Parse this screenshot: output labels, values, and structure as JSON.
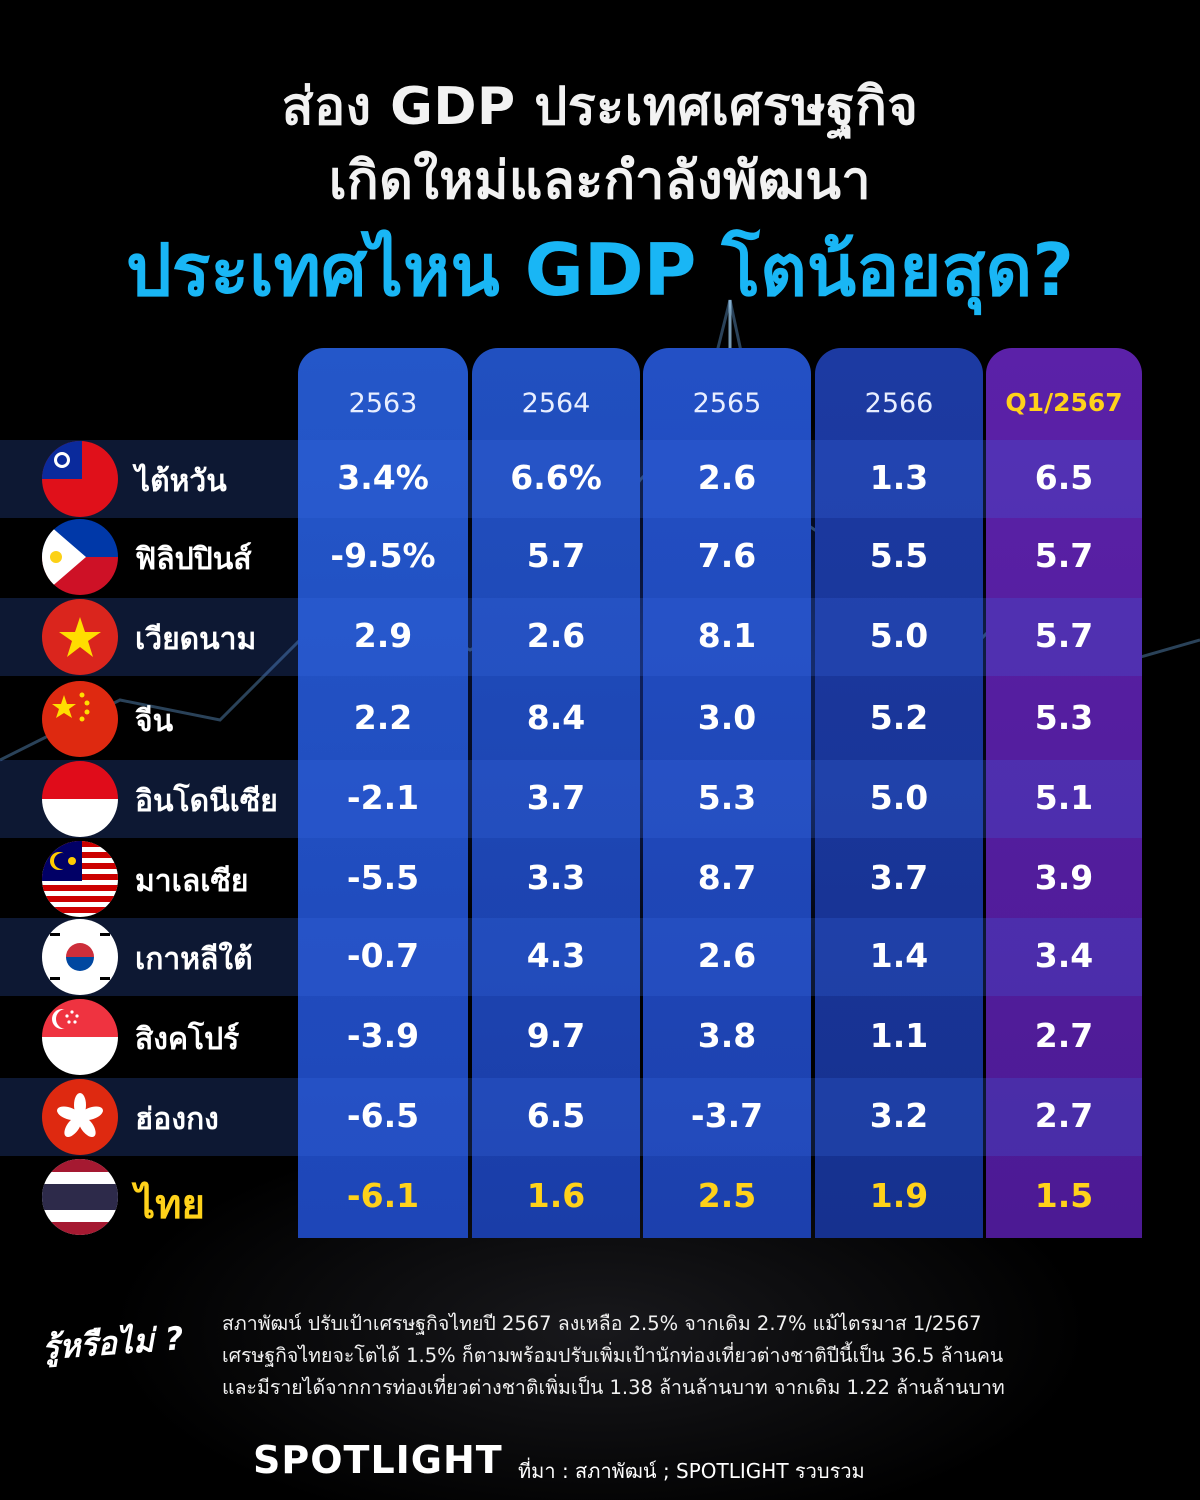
{
  "title": {
    "line1": "ส่อง GDP ประเทศเศรษฐกิจ",
    "line2": "เกิดใหม่และกำลังพัฒนา",
    "line3": "ประเทศไหน GDP โตน้อยสุด?"
  },
  "colors": {
    "accent": "#19b6f5",
    "highlight": "#ffd21a",
    "column_blue": "#2457c9",
    "column_purple": "#5b21a8"
  },
  "chart_data": {
    "type": "table",
    "columns": [
      "2563",
      "2564",
      "2565",
      "2566",
      "Q1/2567"
    ],
    "rows": [
      {
        "country": "ไต้หวัน",
        "flag_icon": "taiwan-flag-icon",
        "values": [
          "3.4%",
          "6.6%",
          "2.6",
          "1.3",
          "6.5"
        ]
      },
      {
        "country": "ฟิลิปปินส์",
        "flag_icon": "philippines-flag-icon",
        "values": [
          "-9.5%",
          "5.7",
          "7.6",
          "5.5",
          "5.7"
        ]
      },
      {
        "country": "เวียดนาม",
        "flag_icon": "vietnam-flag-icon",
        "values": [
          "2.9",
          "2.6",
          "8.1",
          "5.0",
          "5.7"
        ]
      },
      {
        "country": "จีน",
        "flag_icon": "china-flag-icon",
        "values": [
          "2.2",
          "8.4",
          "3.0",
          "5.2",
          "5.3"
        ]
      },
      {
        "country": "อินโดนีเซีย",
        "flag_icon": "indonesia-flag-icon",
        "values": [
          "-2.1",
          "3.7",
          "5.3",
          "5.0",
          "5.1"
        ]
      },
      {
        "country": "มาเลเซีย",
        "flag_icon": "malaysia-flag-icon",
        "values": [
          "-5.5",
          "3.3",
          "8.7",
          "3.7",
          "3.9"
        ]
      },
      {
        "country": "เกาหลีใต้",
        "flag_icon": "korea-flag-icon",
        "values": [
          "-0.7",
          "4.3",
          "2.6",
          "1.4",
          "3.4"
        ]
      },
      {
        "country": "สิงคโปร์",
        "flag_icon": "singapore-flag-icon",
        "values": [
          "-3.9",
          "9.7",
          "3.8",
          "1.1",
          "2.7"
        ]
      },
      {
        "country": "ฮ่องกง",
        "flag_icon": "hongkong-flag-icon",
        "values": [
          "-6.5",
          "6.5",
          "-3.7",
          "3.2",
          "2.7"
        ]
      },
      {
        "country": "ไทย",
        "flag_icon": "thailand-flag-icon",
        "values": [
          "-6.1",
          "1.6",
          "2.5",
          "1.9",
          "1.5"
        ],
        "highlight": true
      }
    ]
  },
  "did_you_know": {
    "label": "รู้หรือไม่ ?",
    "lines": [
      "สภาพัฒน์ ปรับเป้าเศรษฐกิจไทยปี 2567 ลงเหลือ 2.5% จากเดิม 2.7% แม้ไตรมาส 1/2567",
      "เศรษฐกิจไทยจะโตได้ 1.5% ก็ตามพร้อมปรับเพิ่มเป้านักท่องเที่ยวต่างชาติปีนี้เป็น 36.5 ล้านคน",
      "และมีรายได้จากการท่องเที่ยวต่างชาติเพิ่มเป็น 1.38 ล้านล้านบาท จากเดิม 1.22 ล้านล้านบาท"
    ]
  },
  "footer": {
    "logo": "SPOTLIGHT",
    "source": "ที่มา : สภาพัฒน์ ; SPOTLIGHT รวบรวม"
  }
}
